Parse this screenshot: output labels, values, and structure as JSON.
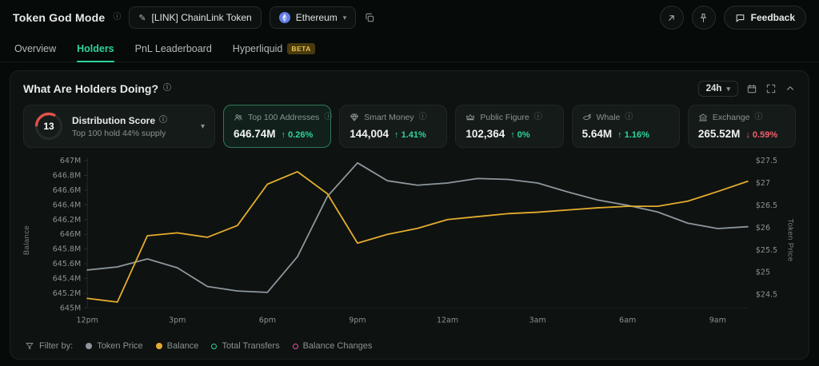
{
  "header": {
    "title": "Token God Mode",
    "token_selector": "[LINK] ChainLink Token",
    "network": "Ethereum",
    "feedback_label": "Feedback"
  },
  "tabs": [
    {
      "label": "Overview",
      "active": false
    },
    {
      "label": "Holders",
      "active": true
    },
    {
      "label": "PnL Leaderboard",
      "active": false
    },
    {
      "label": "Hyperliquid",
      "active": false,
      "badge": "BETA"
    }
  ],
  "panel": {
    "title": "What Are Holders Doing?",
    "timeframe": "24h"
  },
  "distribution": {
    "score": "13",
    "label": "Distribution Score",
    "subtitle": "Top 100 hold 44% supply",
    "arc_color": "#e0524a"
  },
  "stats": [
    {
      "label": "Top 100 Addresses",
      "icon": "people-icon",
      "value": "646.74M",
      "change": "0.26%",
      "direction": "up",
      "selected": true
    },
    {
      "label": "Smart Money",
      "icon": "diamond-icon",
      "value": "144,004",
      "change": "1.41%",
      "direction": "up",
      "selected": false
    },
    {
      "label": "Public Figure",
      "icon": "crown-icon",
      "value": "102,364",
      "change": "0%",
      "direction": "up",
      "selected": false
    },
    {
      "label": "Whale",
      "icon": "whale-icon",
      "value": "5.64M",
      "change": "1.16%",
      "direction": "up",
      "selected": false
    },
    {
      "label": "Exchange",
      "icon": "bank-icon",
      "value": "265.52M",
      "change": "0.59%",
      "direction": "down",
      "selected": false
    }
  ],
  "chart_data": {
    "type": "line",
    "x": [
      "12pm",
      "1pm",
      "2pm",
      "3pm",
      "4pm",
      "5pm",
      "6pm",
      "7pm",
      "8pm",
      "9pm",
      "10pm",
      "11pm",
      "12am",
      "1am",
      "2am",
      "3am",
      "4am",
      "5am",
      "6am",
      "7am",
      "8am",
      "9am",
      "10am"
    ],
    "x_ticks": [
      {
        "i": 0,
        "label": "12pm"
      },
      {
        "i": 3,
        "label": "3pm"
      },
      {
        "i": 6,
        "label": "6pm"
      },
      {
        "i": 9,
        "label": "9pm"
      },
      {
        "i": 12,
        "label": "12am"
      },
      {
        "i": 15,
        "label": "3am"
      },
      {
        "i": 18,
        "label": "6am"
      },
      {
        "i": 21,
        "label": "9am"
      }
    ],
    "series": [
      {
        "name": "Balance",
        "axis": "left",
        "color": "#e3ac2d",
        "values": [
          645.13,
          645.08,
          645.98,
          646.02,
          645.96,
          646.12,
          646.68,
          646.85,
          646.55,
          645.88,
          646.0,
          646.08,
          646.2,
          646.24,
          646.28,
          646.3,
          646.33,
          646.36,
          646.38,
          646.38,
          646.45,
          646.58,
          646.72
        ]
      },
      {
        "name": "Token Price",
        "axis": "right",
        "color": "#8d979b",
        "values": [
          25.05,
          25.12,
          25.3,
          25.1,
          24.68,
          24.58,
          24.55,
          25.35,
          26.7,
          27.45,
          27.05,
          26.95,
          27.0,
          27.1,
          27.08,
          27.0,
          26.8,
          26.62,
          26.5,
          26.35,
          26.1,
          25.98,
          26.02
        ]
      }
    ],
    "left_axis": {
      "label": "Balance",
      "min": 645,
      "max": 647,
      "ticks": [
        {
          "v": 645,
          "label": "645M"
        },
        {
          "v": 645.2,
          "label": "645.2M"
        },
        {
          "v": 645.4,
          "label": "645.4M"
        },
        {
          "v": 645.6,
          "label": "645.6M"
        },
        {
          "v": 645.8,
          "label": "645.8M"
        },
        {
          "v": 646,
          "label": "646M"
        },
        {
          "v": 646.2,
          "label": "646.2M"
        },
        {
          "v": 646.4,
          "label": "646.4M"
        },
        {
          "v": 646.6,
          "label": "646.6M"
        },
        {
          "v": 646.8,
          "label": "646.8M"
        },
        {
          "v": 647,
          "label": "647M"
        }
      ]
    },
    "right_axis": {
      "label": "Token Price",
      "min": 24.2,
      "max": 27.5,
      "ticks": [
        {
          "v": 24.5,
          "label": "$24.5"
        },
        {
          "v": 25,
          "label": "$25"
        },
        {
          "v": 25.5,
          "label": "$25.5"
        },
        {
          "v": 26,
          "label": "$26"
        },
        {
          "v": 26.5,
          "label": "$26.5"
        },
        {
          "v": 27,
          "label": "$27"
        },
        {
          "v": 27.5,
          "label": "$27.5"
        }
      ]
    },
    "legend_position": "bottom",
    "grid": false
  },
  "filters": {
    "label": "Filter by:",
    "items": [
      {
        "label": "Token Price",
        "color": "#8d979b",
        "filled": true
      },
      {
        "label": "Balance",
        "color": "#e3ac2d",
        "filled": true
      },
      {
        "label": "Total Transfers",
        "color": "#2ed39e",
        "filled": false
      },
      {
        "label": "Balance Changes",
        "color": "#e0559c",
        "filled": false
      }
    ]
  }
}
